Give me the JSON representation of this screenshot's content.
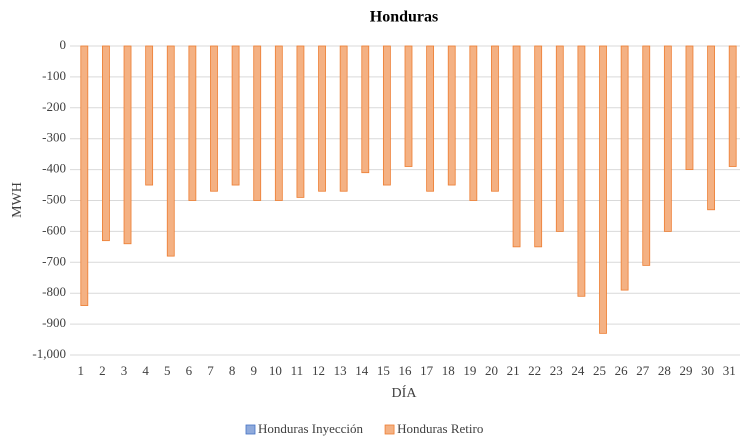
{
  "chart_data": {
    "type": "bar",
    "title": "Honduras",
    "x_label": "DÍA",
    "y_label": "MWH",
    "categories": [
      "1",
      "2",
      "3",
      "4",
      "5",
      "6",
      "7",
      "8",
      "9",
      "10",
      "11",
      "12",
      "13",
      "14",
      "15",
      "16",
      "17",
      "18",
      "19",
      "20",
      "21",
      "22",
      "23",
      "24",
      "25",
      "26",
      "27",
      "28",
      "29",
      "30",
      "31"
    ],
    "series": [
      {
        "name": "Honduras Inyección",
        "color": "#8faadc",
        "values": [
          0,
          0,
          0,
          0,
          0,
          0,
          0,
          0,
          0,
          0,
          0,
          0,
          0,
          0,
          0,
          0,
          0,
          0,
          0,
          0,
          0,
          0,
          0,
          0,
          0,
          0,
          0,
          0,
          0,
          0,
          0
        ]
      },
      {
        "name": "Honduras Retiro",
        "color": "#f4b183",
        "values": [
          -840,
          -630,
          -640,
          -450,
          -680,
          -500,
          -470,
          -450,
          -500,
          -500,
          -490,
          -470,
          -470,
          -410,
          -450,
          -390,
          -470,
          -450,
          -500,
          -470,
          -650,
          -650,
          -600,
          -810,
          -930,
          -790,
          -710,
          -600,
          -400,
          -530,
          -390
        ]
      }
    ],
    "ylim": [
      -1000,
      0
    ],
    "yticks": [
      0,
      -100,
      -200,
      -300,
      -400,
      -500,
      -600,
      -700,
      -800,
      -900,
      {
        "value": -1000,
        "label": "-1,000"
      }
    ],
    "grid": true,
    "legend": "bottom"
  }
}
